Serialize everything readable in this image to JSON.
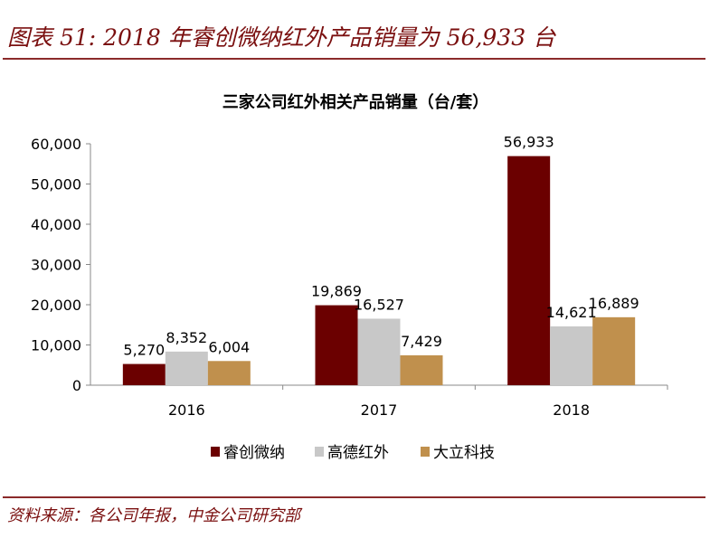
{
  "figure_title": "图表 51: 2018 年睿创微纳红外产品销量为 56,933 台",
  "source": "资料来源：各公司年报，中金公司研究部",
  "chart_data": {
    "type": "bar",
    "title": "三家公司红外相关产品销量（台/套）",
    "categories": [
      "2016",
      "2017",
      "2018"
    ],
    "series": [
      {
        "name": "睿创微纳",
        "color": "#6b0000",
        "values": [
          5270,
          19869,
          56933
        ],
        "labels": [
          "5,270",
          "19,869",
          "56,933"
        ]
      },
      {
        "name": "高德红外",
        "color": "#c8c8c8",
        "values": [
          8352,
          16527,
          14621
        ],
        "labels": [
          "8,352",
          "16,527",
          "14,621"
        ]
      },
      {
        "name": "大立科技",
        "color": "#c0904d",
        "values": [
          6004,
          7429,
          16889
        ],
        "labels": [
          "6,004",
          "7,429",
          "16,889"
        ]
      }
    ],
    "ylim": [
      0,
      60000
    ],
    "yticks": [
      0,
      10000,
      20000,
      30000,
      40000,
      50000,
      60000
    ],
    "ytick_labels": [
      "0",
      "10,000",
      "20,000",
      "30,000",
      "40,000",
      "50,000",
      "60,000"
    ],
    "xlabel": "",
    "ylabel": "",
    "grid": false,
    "legend_position": "bottom"
  }
}
